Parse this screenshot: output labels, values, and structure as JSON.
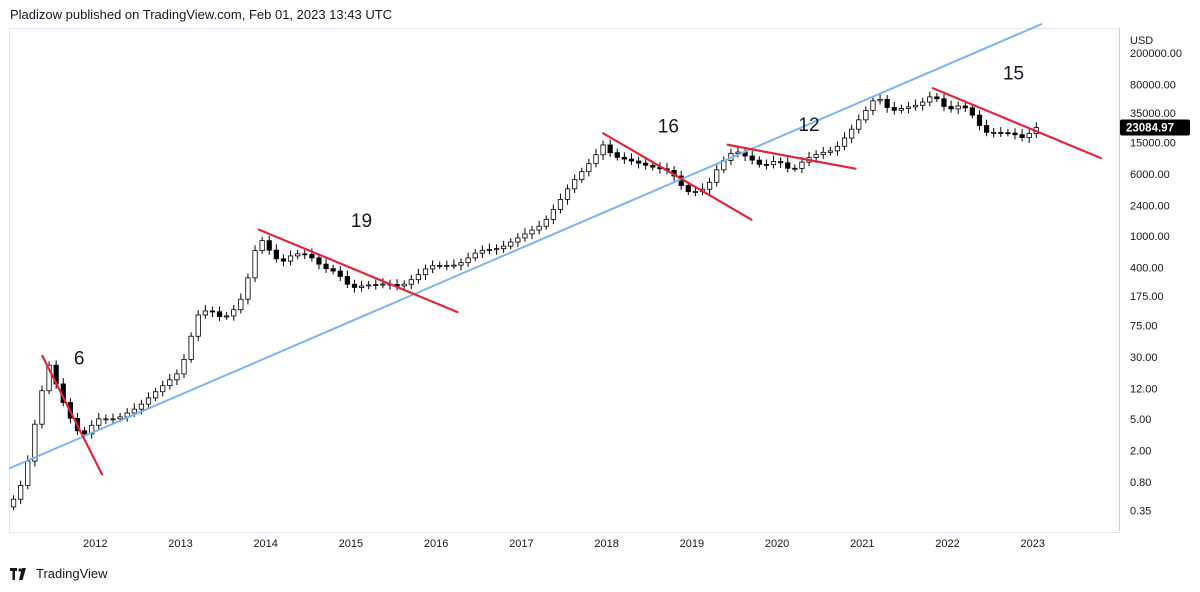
{
  "header": {
    "text": "Pladizow published on TradingView.com, Feb 01, 2023 13:43 UTC"
  },
  "footer": {
    "brand": "TradingView"
  },
  "colors": {
    "trendline": "#7cb5ec",
    "resistance": "#e0263a",
    "candle_up": "#ffffff",
    "candle_down": "#000000",
    "candle_border": "#000000",
    "last_price_bg": "#000000",
    "last_price_text": "#ffffff"
  },
  "chart_data": {
    "type": "candlestick",
    "title": "",
    "currency": "USD",
    "y_scale": "log",
    "ylim": [
      0.2,
      400000
    ],
    "x_range": [
      2011.0,
      2024.0
    ],
    "last_price": "23084.97",
    "y_ticks": [
      {
        "value": 200000,
        "label": "200000.00"
      },
      {
        "value": 80000,
        "label": "80000.00"
      },
      {
        "value": 35000,
        "label": "35000.00"
      },
      {
        "value": 15000,
        "label": "15000.00"
      },
      {
        "value": 6000,
        "label": "6000.00"
      },
      {
        "value": 2400,
        "label": "2400.00"
      },
      {
        "value": 1000,
        "label": "1000.00"
      },
      {
        "value": 400,
        "label": "400.00"
      },
      {
        "value": 175,
        "label": "175.00"
      },
      {
        "value": 75,
        "label": "75.00"
      },
      {
        "value": 30,
        "label": "30.00"
      },
      {
        "value": 12,
        "label": "12.00"
      },
      {
        "value": 5,
        "label": "5.00"
      },
      {
        "value": 2,
        "label": "2.00"
      },
      {
        "value": 0.8,
        "label": "0.80"
      },
      {
        "value": 0.35,
        "label": "0.35"
      }
    ],
    "x_ticks": [
      {
        "value": 2012,
        "label": "2012"
      },
      {
        "value": 2013,
        "label": "2013"
      },
      {
        "value": 2014,
        "label": "2014"
      },
      {
        "value": 2015,
        "label": "2015"
      },
      {
        "value": 2016,
        "label": "2016"
      },
      {
        "value": 2017,
        "label": "2017"
      },
      {
        "value": 2018,
        "label": "2018"
      },
      {
        "value": 2019,
        "label": "2019"
      },
      {
        "value": 2020,
        "label": "2020"
      },
      {
        "value": 2021,
        "label": "2021"
      },
      {
        "value": 2022,
        "label": "2022"
      },
      {
        "value": 2023,
        "label": "2023"
      }
    ],
    "price_points": [
      [
        2011.0,
        0.4
      ],
      [
        2011.17,
        0.9
      ],
      [
        2011.33,
        7
      ],
      [
        2011.45,
        25
      ],
      [
        2011.55,
        13
      ],
      [
        2011.67,
        6
      ],
      [
        2011.83,
        3
      ],
      [
        2011.92,
        3.5
      ],
      [
        2012.0,
        5
      ],
      [
        2012.25,
        5
      ],
      [
        2012.5,
        7
      ],
      [
        2012.75,
        12
      ],
      [
        2013.0,
        20
      ],
      [
        2013.2,
        100
      ],
      [
        2013.33,
        120
      ],
      [
        2013.5,
        90
      ],
      [
        2013.67,
        130
      ],
      [
        2013.75,
        200
      ],
      [
        2013.92,
        1000
      ],
      [
        2014.0,
        750
      ],
      [
        2014.17,
        450
      ],
      [
        2014.33,
        600
      ],
      [
        2014.5,
        580
      ],
      [
        2014.67,
        400
      ],
      [
        2014.83,
        350
      ],
      [
        2015.0,
        220
      ],
      [
        2015.17,
        240
      ],
      [
        2015.42,
        250
      ],
      [
        2015.58,
        230
      ],
      [
        2015.75,
        300
      ],
      [
        2015.92,
        420
      ],
      [
        2016.25,
        430
      ],
      [
        2016.5,
        650
      ],
      [
        2016.75,
        700
      ],
      [
        2017.0,
        1000
      ],
      [
        2017.25,
        1400
      ],
      [
        2017.42,
        2500
      ],
      [
        2017.58,
        4500
      ],
      [
        2017.83,
        9000
      ],
      [
        2017.96,
        14000
      ],
      [
        2018.08,
        10000
      ],
      [
        2018.25,
        9000
      ],
      [
        2018.5,
        7500
      ],
      [
        2018.75,
        6500
      ],
      [
        2018.92,
        3700
      ],
      [
        2019.0,
        3500
      ],
      [
        2019.17,
        4000
      ],
      [
        2019.33,
        8000
      ],
      [
        2019.5,
        12000
      ],
      [
        2019.67,
        9500
      ],
      [
        2019.83,
        7500
      ],
      [
        2020.0,
        9000
      ],
      [
        2020.17,
        6500
      ],
      [
        2020.33,
        9200
      ],
      [
        2020.5,
        11000
      ],
      [
        2020.67,
        12000
      ],
      [
        2020.83,
        19000
      ],
      [
        2021.0,
        33000
      ],
      [
        2021.17,
        58000
      ],
      [
        2021.33,
        37000
      ],
      [
        2021.5,
        41000
      ],
      [
        2021.67,
        45000
      ],
      [
        2021.83,
        60000
      ],
      [
        2021.92,
        47000
      ],
      [
        2022.0,
        38000
      ],
      [
        2022.17,
        45000
      ],
      [
        2022.33,
        30000
      ],
      [
        2022.42,
        20000
      ],
      [
        2022.58,
        20000
      ],
      [
        2022.75,
        19500
      ],
      [
        2022.92,
        16500
      ],
      [
        2023.0,
        23000
      ]
    ],
    "trend_lines": [
      {
        "name": "long-term-support",
        "color": "#7cb5ec",
        "points": [
          [
            2011.0,
            1.2
          ],
          [
            2023.1,
            460000
          ]
        ]
      },
      {
        "name": "resistance-2011",
        "color": "#e0263a",
        "points": [
          [
            2011.38,
            31
          ],
          [
            2012.08,
            1.0
          ]
        ]
      },
      {
        "name": "resistance-2014",
        "color": "#e0263a",
        "points": [
          [
            2013.92,
            1200
          ],
          [
            2016.25,
            110
          ]
        ]
      },
      {
        "name": "resistance-2018",
        "color": "#e0263a",
        "points": [
          [
            2017.96,
            19500
          ],
          [
            2019.7,
            1600
          ]
        ]
      },
      {
        "name": "resistance-2020",
        "color": "#e0263a",
        "points": [
          [
            2019.42,
            14000
          ],
          [
            2020.92,
            7000
          ]
        ]
      },
      {
        "name": "resistance-2022",
        "color": "#e0263a",
        "points": [
          [
            2021.83,
            72000
          ],
          [
            2023.8,
            9500
          ]
        ]
      }
    ],
    "annotations": [
      {
        "text": "6",
        "x": 2011.75,
        "y": 24
      },
      {
        "text": "19",
        "x": 2015.0,
        "y": 1300
      },
      {
        "text": "16",
        "x": 2018.6,
        "y": 20000
      },
      {
        "text": "12",
        "x": 2020.25,
        "y": 21000
      },
      {
        "text": "15",
        "x": 2022.65,
        "y": 92000
      }
    ]
  }
}
